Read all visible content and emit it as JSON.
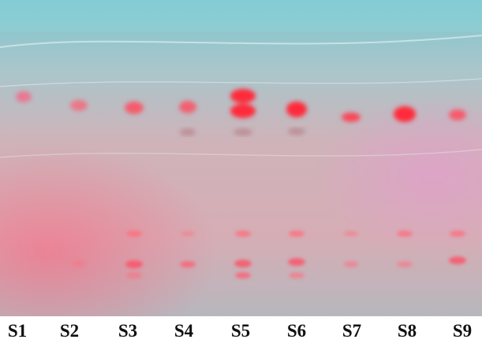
{
  "lane_labels": [
    "S1",
    "S2",
    "S3",
    "S4",
    "S5",
    "S6",
    "S7",
    "S8",
    "S9"
  ]
}
